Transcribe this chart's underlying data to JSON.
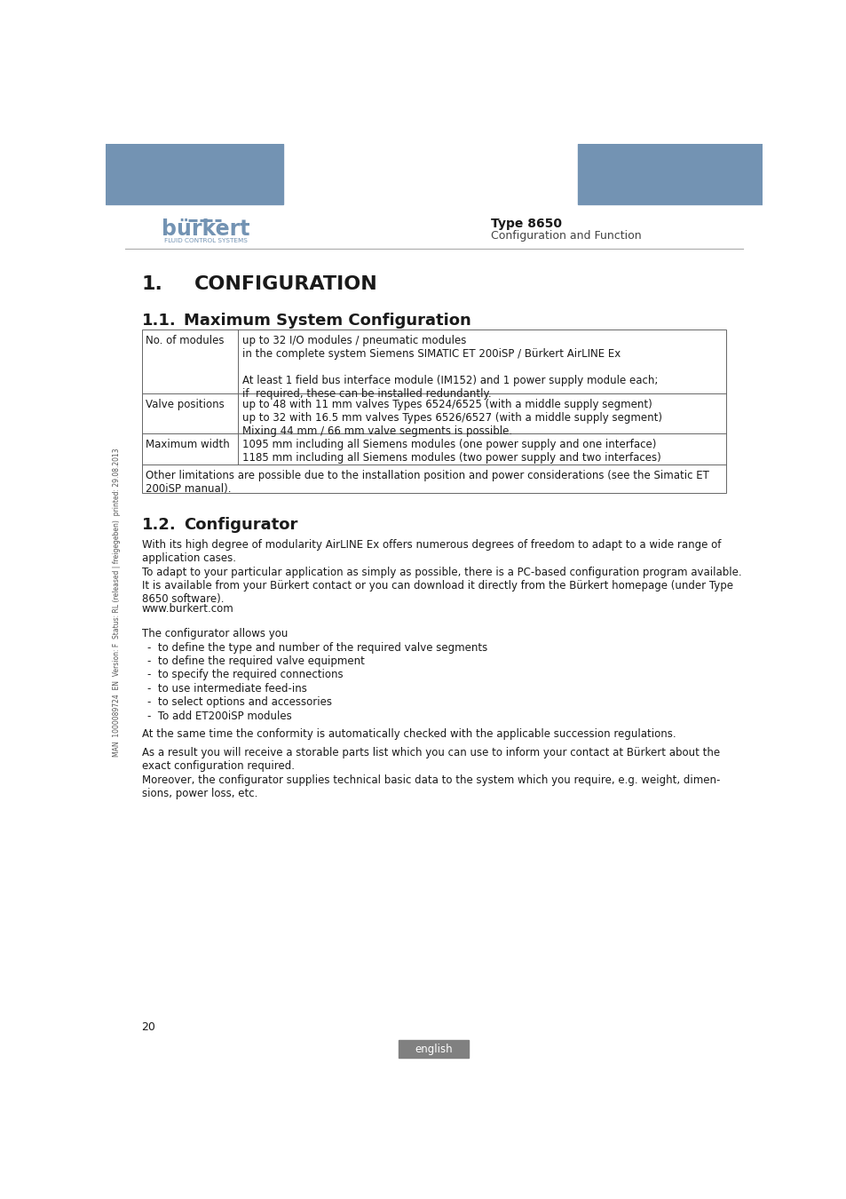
{
  "header_blue": "#7393b3",
  "burkert_logo_text": "burkert",
  "burkert_sub_text": "FLUID CONTROL SYSTEMS",
  "type_text": "Type 8650",
  "type_sub_text": "Configuration and Function",
  "section1_title": "1.",
  "section1_body": "CONFIGURATION",
  "section11_num": "1.1.",
  "section11_body": "Maximum System Configuration",
  "section12_num": "1.2.",
  "section12_body": "Configurator",
  "row1_label": "No. of modules",
  "row1_content": "up to 32 I/O modules / pneumatic modules\nin the complete system Siemens SIMATIC ET 200iSP / Bürkert AirLINE Ex\n\nAt least 1 field bus interface module (IM152) and 1 power supply module each;\nif  required, these can be installed redundantly.",
  "row2_label": "Valve positions",
  "row2_content": "up to 48 with 11 mm valves Types 6524/6525 (with a middle supply segment)\nup to 32 with 16.5 mm valves Types 6526/6527 (with a middle supply segment)\nMixing 44 mm / 66 mm valve segments is possible.",
  "row3_label": "Maximum width",
  "row3_content": "1095 mm including all Siemens modules (one power supply and one interface)\n1185 mm including all Siemens modules (two power supply and two interfaces)",
  "row4_content": "Other limitations are possible due to the installation position and power considerations (see the Simatic ET\n200iSP manual).",
  "para_12_1": "With its high degree of modularity AirLINE Ex offers numerous degrees of freedom to adapt to a wide range of\napplication cases.",
  "para_12_2": "To adapt to your particular application as simply as possible, there is a PC-based configuration program available.\nIt is available from your Bürkert contact or you can download it directly from the Bürkert homepage (under Type\n8650 software).",
  "para_12_3": "www.burkert.com",
  "para_12_4": "The configurator allows you",
  "bullet_points": [
    "-  to define the type and number of the required valve segments",
    "-  to define the required valve equipment",
    "-  to specify the required connections",
    "-  to use intermediate feed-ins",
    "-  to select options and accessories",
    "-  To add ET200iSP modules"
  ],
  "para_12_5": "At the same time the conformity is automatically checked with the applicable succession regulations.",
  "para_12_6": "As a result you will receive a storable parts list which you can use to inform your contact at Bürkert about the\nexact configuration required.",
  "para_12_7": "Moreover, the configurator supplies technical basic data to the system which you require, e.g. weight, dimen-\nsions, power loss, etc.",
  "side_text": "MAN  1000089724  EN  Version: F  Status: RL (released | freigegeben)  printed: 29.08.2013",
  "page_number": "20",
  "footer_text": "english",
  "bg_color": "#ffffff",
  "text_color": "#1a1a1a",
  "table_border_color": "#666666",
  "font_size_body": 8.5,
  "font_size_h1": 16,
  "font_size_h2": 13,
  "font_size_header": 9,
  "footer_bg": "#808080"
}
